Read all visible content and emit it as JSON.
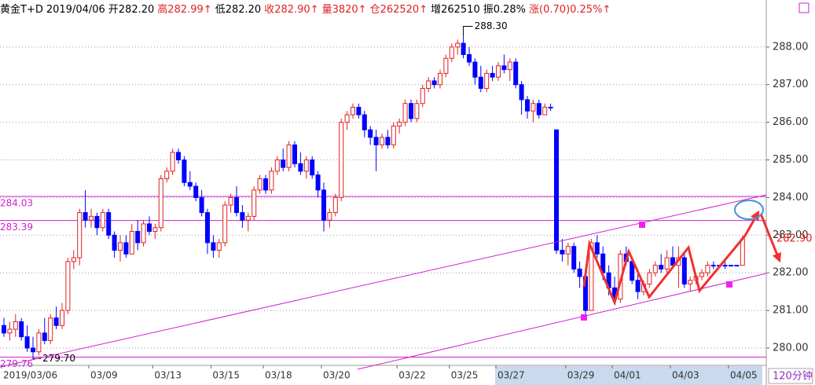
{
  "chart_data": {
    "type": "candlestick",
    "header": [
      {
        "text": "黄金T+D",
        "color": "#000000"
      },
      {
        "text": "2019/04/06",
        "color": "#000000"
      },
      {
        "text": "开282.20",
        "color": "#000000"
      },
      {
        "text": "高282.99↑",
        "color": "#e02020"
      },
      {
        "text": "低282.20",
        "color": "#000000"
      },
      {
        "text": "收282.90↑",
        "color": "#e02020"
      },
      {
        "text": "量3820↑",
        "color": "#e02020"
      },
      {
        "text": "仓262520↑",
        "color": "#e02020"
      },
      {
        "text": "增262510",
        "color": "#000000"
      },
      {
        "text": "振0.28%",
        "color": "#000000"
      },
      {
        "text": "涨(0.70)0.25%↑",
        "color": "#e02020"
      }
    ],
    "period": "120分钟",
    "up_color": "#e02020",
    "down_color": "#0000ff",
    "level_color": "#d020d0",
    "grid": true,
    "ylim": [
      279.54,
      289.25
    ],
    "yticks": [
      {
        "value": 280,
        "label": "280.00"
      },
      {
        "value": 281,
        "label": "281.00"
      },
      {
        "value": 282,
        "label": "282.00"
      },
      {
        "value": 283,
        "label": "283.00"
      },
      {
        "value": 284,
        "label": "284.00"
      },
      {
        "value": 285,
        "label": "285.00"
      },
      {
        "value": 286,
        "label": "286.00"
      },
      {
        "value": 287,
        "label": "287.00"
      },
      {
        "value": 288,
        "label": "288.00"
      }
    ],
    "levels": [
      {
        "value": 284.03,
        "label": "284.03"
      },
      {
        "value": 283.39,
        "label": "283.39"
      },
      {
        "value": 279.76,
        "label": "279.76"
      }
    ],
    "high_label": "288.30",
    "low_label": "279.70",
    "last_label": "282.90",
    "categories": [
      "2019/03/06",
      null,
      null,
      null,
      null,
      null,
      null,
      null,
      null,
      null,
      null,
      null,
      null,
      null,
      null,
      "03/09",
      null,
      null,
      null,
      null,
      null,
      null,
      null,
      null,
      null,
      null,
      "03/13",
      null,
      null,
      null,
      null,
      null,
      null,
      null,
      null,
      null,
      "03/15",
      null,
      null,
      null,
      null,
      null,
      null,
      null,
      null,
      "03/18",
      null,
      null,
      null,
      null,
      null,
      null,
      null,
      null,
      null,
      "03/20",
      null,
      null,
      null,
      null,
      null,
      null,
      null,
      null,
      null,
      null,
      null,
      null,
      "03/22",
      null,
      null,
      null,
      null,
      null,
      null,
      null,
      null,
      "03/25",
      null,
      null,
      null,
      null,
      null,
      null,
      null,
      "03/27",
      null,
      null,
      null,
      null,
      null,
      null,
      null,
      null,
      null,
      null,
      null,
      "03/29",
      null,
      null,
      null,
      null,
      null,
      null,
      null,
      "04/01",
      null,
      null,
      null,
      null,
      null,
      null,
      null,
      null,
      null,
      "04/03",
      null,
      null,
      null,
      null,
      null,
      null,
      null,
      null,
      null,
      "04/05",
      null,
      null
    ],
    "candles": [
      [
        280.6,
        280.8,
        280.3,
        280.4
      ],
      [
        280.4,
        280.7,
        280.2,
        280.5
      ],
      [
        280.5,
        280.9,
        280.3,
        280.7
      ],
      [
        280.7,
        280.8,
        280.2,
        280.3
      ],
      [
        280.3,
        280.6,
        279.9,
        280.0
      ],
      [
        280.0,
        280.3,
        279.7,
        279.9
      ],
      [
        279.9,
        280.5,
        279.8,
        280.4
      ],
      [
        280.4,
        280.8,
        280.1,
        280.2
      ],
      [
        280.2,
        280.9,
        280.1,
        280.8
      ],
      [
        280.8,
        281.1,
        280.5,
        280.6
      ],
      [
        280.6,
        281.2,
        280.5,
        281.0
      ],
      [
        281.0,
        282.4,
        280.9,
        282.3
      ],
      [
        282.3,
        282.6,
        282.1,
        282.4
      ],
      [
        282.4,
        283.7,
        282.2,
        283.6
      ],
      [
        283.6,
        284.2,
        283.2,
        283.4
      ],
      [
        283.4,
        283.7,
        283.2,
        283.5
      ],
      [
        283.5,
        283.6,
        283.0,
        283.2
      ],
      [
        283.2,
        283.7,
        283.1,
        283.6
      ],
      [
        283.6,
        283.7,
        282.9,
        283.0
      ],
      [
        283.0,
        283.1,
        282.4,
        282.6
      ],
      [
        282.6,
        283.0,
        282.3,
        282.8
      ],
      [
        282.8,
        283.0,
        282.4,
        282.5
      ],
      [
        282.5,
        283.3,
        282.5,
        283.1
      ],
      [
        283.1,
        283.4,
        282.6,
        282.8
      ],
      [
        282.8,
        283.4,
        282.7,
        283.3
      ],
      [
        283.3,
        283.5,
        283.0,
        283.1
      ],
      [
        283.1,
        283.3,
        282.9,
        283.2
      ],
      [
        283.2,
        284.6,
        283.1,
        284.5
      ],
      [
        284.5,
        284.8,
        284.4,
        284.7
      ],
      [
        284.7,
        285.3,
        284.6,
        285.2
      ],
      [
        285.2,
        285.3,
        284.9,
        285.0
      ],
      [
        285.0,
        285.1,
        284.3,
        284.4
      ],
      [
        284.4,
        284.7,
        284.2,
        284.3
      ],
      [
        284.3,
        284.4,
        283.9,
        284.0
      ],
      [
        284.0,
        284.2,
        283.5,
        283.6
      ],
      [
        283.6,
        283.7,
        282.5,
        282.8
      ],
      [
        282.8,
        283.0,
        282.4,
        282.6
      ],
      [
        282.6,
        282.9,
        282.4,
        282.8
      ],
      [
        282.8,
        283.9,
        282.7,
        283.8
      ],
      [
        283.8,
        284.1,
        283.6,
        284.0
      ],
      [
        284.0,
        284.3,
        283.5,
        283.6
      ],
      [
        283.6,
        283.8,
        283.2,
        283.4
      ],
      [
        283.4,
        283.6,
        283.1,
        283.5
      ],
      [
        283.5,
        284.3,
        283.4,
        284.2
      ],
      [
        284.2,
        284.6,
        284.1,
        284.5
      ],
      [
        284.5,
        284.6,
        284.1,
        284.2
      ],
      [
        284.2,
        284.8,
        284.1,
        284.7
      ],
      [
        284.7,
        285.1,
        284.6,
        285.0
      ],
      [
        285.0,
        285.3,
        284.7,
        284.8
      ],
      [
        284.8,
        285.5,
        284.7,
        285.4
      ],
      [
        285.4,
        285.5,
        284.8,
        284.9
      ],
      [
        284.9,
        285.2,
        284.6,
        284.7
      ],
      [
        284.7,
        285.1,
        284.5,
        285.0
      ],
      [
        285.0,
        285.1,
        284.5,
        284.6
      ],
      [
        284.6,
        284.7,
        284.0,
        284.2
      ],
      [
        284.2,
        284.4,
        283.1,
        283.4
      ],
      [
        283.4,
        283.7,
        283.2,
        283.6
      ],
      [
        283.6,
        284.1,
        283.5,
        284.0
      ],
      [
        284.0,
        286.1,
        283.9,
        286.0
      ],
      [
        286.0,
        286.3,
        285.8,
        286.2
      ],
      [
        286.2,
        286.5,
        286.1,
        286.4
      ],
      [
        286.4,
        286.5,
        286.1,
        286.2
      ],
      [
        286.2,
        286.3,
        285.6,
        285.8
      ],
      [
        285.8,
        285.9,
        285.4,
        285.6
      ],
      [
        285.6,
        285.8,
        284.7,
        285.4
      ],
      [
        285.4,
        285.7,
        285.3,
        285.6
      ],
      [
        285.6,
        285.8,
        285.3,
        285.4
      ],
      [
        285.4,
        286.0,
        285.3,
        285.9
      ],
      [
        285.9,
        286.1,
        285.7,
        286.0
      ],
      [
        286.0,
        286.6,
        285.9,
        286.5
      ],
      [
        286.5,
        286.6,
        286.0,
        286.1
      ],
      [
        286.1,
        286.6,
        286.0,
        286.5
      ],
      [
        286.5,
        287.0,
        286.4,
        286.9
      ],
      [
        286.9,
        287.2,
        286.8,
        287.1
      ],
      [
        287.1,
        287.2,
        286.9,
        287.0
      ],
      [
        287.0,
        287.4,
        286.9,
        287.3
      ],
      [
        287.3,
        287.8,
        287.2,
        287.7
      ],
      [
        287.7,
        288.1,
        287.6,
        288.0
      ],
      [
        288.0,
        288.2,
        287.8,
        288.1
      ],
      [
        288.1,
        288.3,
        287.7,
        287.8
      ],
      [
        287.8,
        288.0,
        287.5,
        287.6
      ],
      [
        287.6,
        287.7,
        287.0,
        287.2
      ],
      [
        287.2,
        287.5,
        286.8,
        286.9
      ],
      [
        286.9,
        287.4,
        286.8,
        287.3
      ],
      [
        287.3,
        287.5,
        287.1,
        287.2
      ],
      [
        287.2,
        287.6,
        287.1,
        287.5
      ],
      [
        287.5,
        287.8,
        287.3,
        287.4
      ],
      [
        287.4,
        287.7,
        287.1,
        287.6
      ],
      [
        287.6,
        287.7,
        286.9,
        287.0
      ],
      [
        287.0,
        287.1,
        286.2,
        286.6
      ],
      [
        286.6,
        286.7,
        286.1,
        286.3
      ],
      [
        286.3,
        286.6,
        286.0,
        286.5
      ],
      [
        286.5,
        286.6,
        286.1,
        286.2
      ],
      [
        286.2,
        286.5,
        286.2,
        286.4
      ],
      [
        286.4,
        286.5,
        286.3,
        286.4
      ],
      [
        285.8,
        285.8,
        282.5,
        282.6
      ],
      [
        282.6,
        282.9,
        282.3,
        282.5
      ],
      [
        282.5,
        282.8,
        282.2,
        282.7
      ],
      [
        282.7,
        282.8,
        282.0,
        282.1
      ],
      [
        282.1,
        282.3,
        281.6,
        281.9
      ],
      [
        281.9,
        282.0,
        280.9,
        281.0
      ],
      [
        281.0,
        282.9,
        281.0,
        282.8
      ],
      [
        282.8,
        283.0,
        282.4,
        282.5
      ],
      [
        282.5,
        282.7,
        281.8,
        282.0
      ],
      [
        282.0,
        282.2,
        281.4,
        281.6
      ],
      [
        281.6,
        281.9,
        281.2,
        281.3
      ],
      [
        281.3,
        282.6,
        281.2,
        282.5
      ],
      [
        282.5,
        282.7,
        282.2,
        282.3
      ],
      [
        282.3,
        282.4,
        281.7,
        281.8
      ],
      [
        281.8,
        282.0,
        281.3,
        281.5
      ],
      [
        281.5,
        281.8,
        281.4,
        281.7
      ],
      [
        281.7,
        282.1,
        281.6,
        282.0
      ],
      [
        282.0,
        282.3,
        281.9,
        282.2
      ],
      [
        282.2,
        282.5,
        282.0,
        282.1
      ],
      [
        282.1,
        282.6,
        282.0,
        282.4
      ],
      [
        282.4,
        282.7,
        282.1,
        282.2
      ],
      [
        282.2,
        282.7,
        281.6,
        282.4
      ],
      [
        282.4,
        282.5,
        281.6,
        281.7
      ],
      [
        281.7,
        281.9,
        281.5,
        281.8
      ],
      [
        281.8,
        282.0,
        281.7,
        281.9
      ],
      [
        281.9,
        282.1,
        281.8,
        282.0
      ],
      [
        282.0,
        282.3,
        281.9,
        282.2
      ],
      [
        282.2,
        282.3,
        282.1,
        282.2
      ],
      [
        282.2,
        282.2,
        282.2,
        282.2
      ],
      [
        282.2,
        282.3,
        282.1,
        282.2
      ],
      [
        282.2,
        282.2,
        282.2,
        282.2
      ],
      [
        282.2,
        282.2,
        282.2,
        282.2
      ],
      [
        282.2,
        282.99,
        282.2,
        282.9
      ]
    ]
  }
}
